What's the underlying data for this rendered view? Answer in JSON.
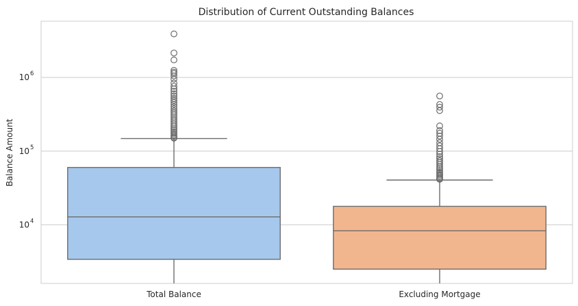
{
  "chart_data": {
    "type": "box",
    "title": "Distribution of Current Outstanding Balances",
    "xlabel": "",
    "ylabel": "Balance Amount",
    "yscale": "log",
    "ylim": [
      1600,
      5800000
    ],
    "y_ticks": [
      {
        "value": 10000,
        "base": "10",
        "exp": "4"
      },
      {
        "value": 100000,
        "base": "10",
        "exp": "5"
      },
      {
        "value": 1000000,
        "base": "10",
        "exp": "6"
      }
    ],
    "grid": "horizontal",
    "categories": [
      "Total Balance",
      "Excluding Mortgage"
    ],
    "boxes": [
      {
        "category": "Total Balance",
        "color": "#a6c8ed",
        "whisker_low": 1600,
        "q1": 3400,
        "median": 12800,
        "q3": 60000,
        "whisker_high": 148000,
        "outliers": [
          3900000,
          2150000,
          1730000,
          1250000,
          1180000,
          1130000,
          1050000,
          950000,
          840000,
          760000,
          700000,
          650000,
          600000,
          560000,
          520000,
          490000,
          460000,
          430000,
          400000,
          375000,
          350000,
          330000,
          310000,
          290000,
          272000,
          256000,
          240000,
          226000,
          214000,
          202000,
          192000,
          182000,
          174000,
          166000,
          159000,
          153000,
          150000
        ]
      },
      {
        "category": "Excluding Mortgage",
        "color": "#f2b68e",
        "whisker_low": 1600,
        "q1": 2500,
        "median": 8300,
        "q3": 17800,
        "whisker_high": 40500,
        "outliers": [
          560000,
          430000,
          395000,
          355000,
          220000,
          190000,
          175000,
          160000,
          145000,
          130000,
          118000,
          108000,
          99000,
          91000,
          84000,
          79000,
          74000,
          70000,
          66000,
          62000,
          59000,
          56000,
          53000,
          50500,
          48000,
          46000,
          44000,
          42500,
          41500
        ]
      }
    ],
    "colors": {
      "median_line": "#6b6b6b",
      "whisker": "#6b6b6b",
      "grid": "#cccccc",
      "frame": "#cccccc"
    }
  }
}
